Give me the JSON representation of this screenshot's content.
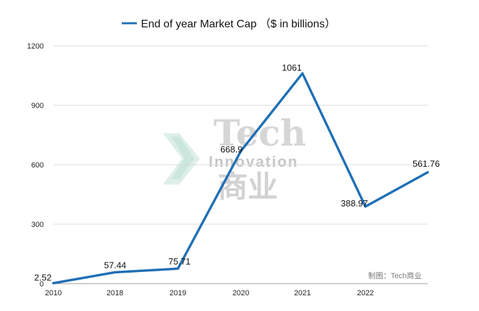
{
  "chart_data": {
    "type": "line",
    "title": "",
    "xlabel": "",
    "ylabel": "",
    "categories": [
      "2010",
      "2018",
      "2019",
      "2020",
      "2021",
      "2022",
      ""
    ],
    "series": [
      {
        "name": "End of year Market Cap （$ in billions）",
        "color": "#1f6fb5",
        "values": [
          2.52,
          57.44,
          75.71,
          668.9,
          1061,
          388.97,
          561.76
        ],
        "labels": [
          "2.52",
          "57.44",
          "75.71",
          "668.9",
          "1061",
          "388.97",
          "561.76"
        ]
      }
    ],
    "ylim": [
      0,
      1200
    ],
    "yticks": [
      0,
      300,
      600,
      900,
      1200
    ],
    "grid": true,
    "legend_position": "top-center"
  },
  "credit": "制图：Tech商业",
  "watermark": {
    "line1": "Tech",
    "line2": "Innovation",
    "line3": "商业"
  }
}
